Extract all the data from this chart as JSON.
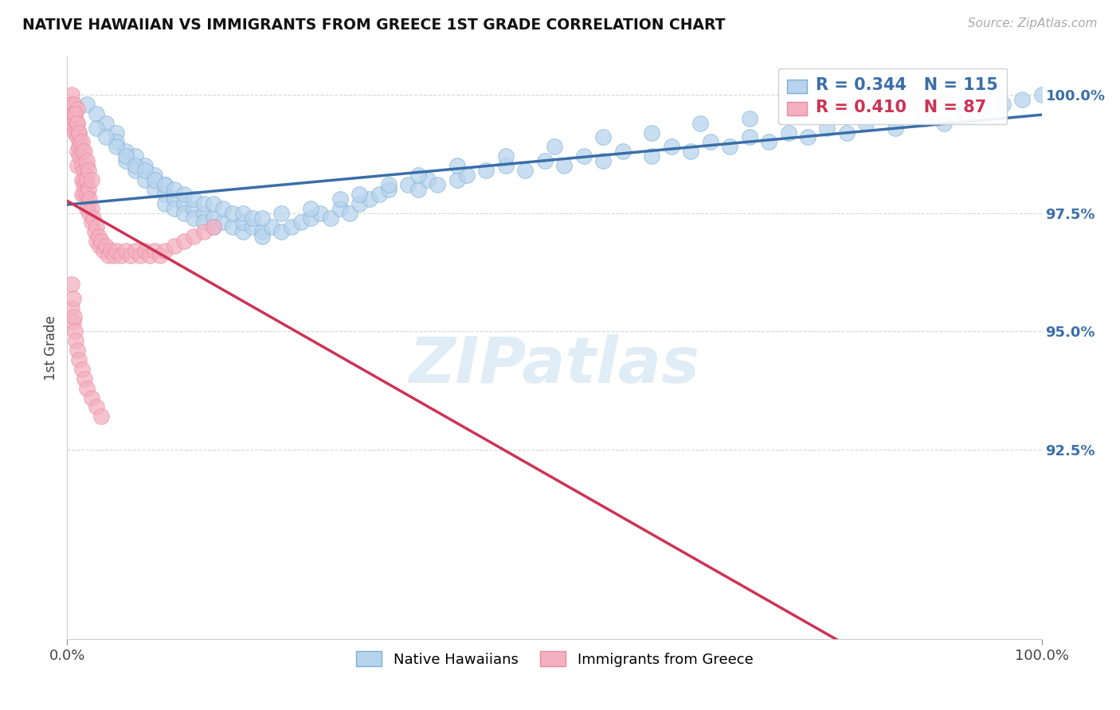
{
  "title": "NATIVE HAWAIIAN VS IMMIGRANTS FROM GREECE 1ST GRADE CORRELATION CHART",
  "source_text": "Source: ZipAtlas.com",
  "ylabel": "1st Grade",
  "xlim": [
    0,
    1
  ],
  "ylim": [
    0.885,
    1.008
  ],
  "yticks": [
    0.925,
    0.95,
    0.975,
    1.0
  ],
  "ytick_labels": [
    "92.5%",
    "95.0%",
    "97.5%",
    "100.0%"
  ],
  "xtick_labels": [
    "0.0%",
    "100.0%"
  ],
  "blue_R": 0.344,
  "blue_N": 115,
  "pink_R": 0.41,
  "pink_N": 87,
  "blue_color": "#b8d4ed",
  "pink_color": "#f4b0c0",
  "blue_edge_color": "#7aaed4",
  "pink_edge_color": "#e88aa0",
  "blue_line_color": "#3a6ea8",
  "pink_line_color": "#cc3355",
  "watermark_color": "#cce0f0",
  "background_color": "#ffffff",
  "grid_color": "#cccccc",
  "title_color": "#111111",
  "source_color": "#aaaaaa",
  "ytick_color": "#3a6ea8",
  "watermark": "ZIPatlas",
  "blue_scatter_x": [
    0.02,
    0.03,
    0.04,
    0.05,
    0.05,
    0.06,
    0.06,
    0.07,
    0.07,
    0.08,
    0.08,
    0.09,
    0.09,
    0.1,
    0.1,
    0.1,
    0.11,
    0.11,
    0.12,
    0.12,
    0.13,
    0.13,
    0.14,
    0.14,
    0.15,
    0.15,
    0.16,
    0.17,
    0.18,
    0.18,
    0.19,
    0.2,
    0.2,
    0.21,
    0.22,
    0.23,
    0.24,
    0.25,
    0.26,
    0.27,
    0.28,
    0.29,
    0.3,
    0.31,
    0.32,
    0.33,
    0.35,
    0.36,
    0.37,
    0.38,
    0.4,
    0.41,
    0.43,
    0.45,
    0.47,
    0.49,
    0.51,
    0.53,
    0.55,
    0.57,
    0.6,
    0.62,
    0.64,
    0.66,
    0.68,
    0.7,
    0.72,
    0.74,
    0.76,
    0.78,
    0.8,
    0.82,
    0.85,
    0.88,
    0.9,
    0.92,
    0.94,
    0.96,
    0.98,
    1.0,
    0.03,
    0.04,
    0.05,
    0.06,
    0.07,
    0.08,
    0.09,
    0.1,
    0.11,
    0.12,
    0.13,
    0.14,
    0.15,
    0.16,
    0.17,
    0.18,
    0.19,
    0.2,
    0.22,
    0.25,
    0.28,
    0.3,
    0.33,
    0.36,
    0.4,
    0.45,
    0.5,
    0.55,
    0.6,
    0.65,
    0.7,
    0.75,
    0.8,
    0.85,
    0.9
  ],
  "blue_scatter_y": [
    0.998,
    0.996,
    0.994,
    0.992,
    0.99,
    0.988,
    0.986,
    0.987,
    0.984,
    0.985,
    0.982,
    0.983,
    0.98,
    0.981,
    0.979,
    0.977,
    0.978,
    0.976,
    0.977,
    0.975,
    0.976,
    0.974,
    0.975,
    0.973,
    0.974,
    0.972,
    0.973,
    0.972,
    0.971,
    0.973,
    0.972,
    0.971,
    0.97,
    0.972,
    0.971,
    0.972,
    0.973,
    0.974,
    0.975,
    0.974,
    0.976,
    0.975,
    0.977,
    0.978,
    0.979,
    0.98,
    0.981,
    0.98,
    0.982,
    0.981,
    0.982,
    0.983,
    0.984,
    0.985,
    0.984,
    0.986,
    0.985,
    0.987,
    0.986,
    0.988,
    0.987,
    0.989,
    0.988,
    0.99,
    0.989,
    0.991,
    0.99,
    0.992,
    0.991,
    0.993,
    0.992,
    0.994,
    0.993,
    0.995,
    0.994,
    0.996,
    0.997,
    0.998,
    0.999,
    1.0,
    0.993,
    0.991,
    0.989,
    0.987,
    0.985,
    0.984,
    0.982,
    0.981,
    0.98,
    0.979,
    0.978,
    0.977,
    0.977,
    0.976,
    0.975,
    0.975,
    0.974,
    0.974,
    0.975,
    0.976,
    0.978,
    0.979,
    0.981,
    0.983,
    0.985,
    0.987,
    0.989,
    0.991,
    0.992,
    0.994,
    0.995,
    0.996,
    0.997,
    0.998,
    0.999
  ],
  "pink_scatter_x": [
    0.005,
    0.005,
    0.005,
    0.005,
    0.007,
    0.007,
    0.007,
    0.008,
    0.008,
    0.01,
    0.01,
    0.01,
    0.01,
    0.01,
    0.012,
    0.012,
    0.013,
    0.013,
    0.015,
    0.015,
    0.015,
    0.015,
    0.017,
    0.017,
    0.018,
    0.018,
    0.02,
    0.02,
    0.02,
    0.02,
    0.022,
    0.022,
    0.023,
    0.023,
    0.025,
    0.025,
    0.027,
    0.028,
    0.03,
    0.03,
    0.032,
    0.033,
    0.035,
    0.037,
    0.04,
    0.042,
    0.045,
    0.048,
    0.05,
    0.055,
    0.06,
    0.065,
    0.07,
    0.075,
    0.08,
    0.085,
    0.09,
    0.095,
    0.1,
    0.11,
    0.12,
    0.13,
    0.14,
    0.15,
    0.008,
    0.01,
    0.012,
    0.015,
    0.018,
    0.02,
    0.022,
    0.025,
    0.005,
    0.005,
    0.006,
    0.006,
    0.007,
    0.008,
    0.009,
    0.01,
    0.012,
    0.015,
    0.018,
    0.02,
    0.025,
    0.03,
    0.035
  ],
  "pink_scatter_y": [
    1.0,
    0.998,
    0.996,
    0.994,
    0.998,
    0.996,
    0.993,
    0.995,
    0.992,
    0.997,
    0.994,
    0.991,
    0.988,
    0.985,
    0.992,
    0.989,
    0.99,
    0.987,
    0.988,
    0.985,
    0.982,
    0.979,
    0.984,
    0.981,
    0.982,
    0.979,
    0.985,
    0.982,
    0.979,
    0.976,
    0.98,
    0.977,
    0.978,
    0.975,
    0.976,
    0.973,
    0.974,
    0.971,
    0.972,
    0.969,
    0.97,
    0.968,
    0.969,
    0.967,
    0.968,
    0.966,
    0.967,
    0.966,
    0.967,
    0.966,
    0.967,
    0.966,
    0.967,
    0.966,
    0.967,
    0.966,
    0.967,
    0.966,
    0.967,
    0.968,
    0.969,
    0.97,
    0.971,
    0.972,
    0.996,
    0.994,
    0.992,
    0.99,
    0.988,
    0.986,
    0.984,
    0.982,
    0.96,
    0.955,
    0.957,
    0.952,
    0.953,
    0.95,
    0.948,
    0.946,
    0.944,
    0.942,
    0.94,
    0.938,
    0.936,
    0.934,
    0.932
  ]
}
